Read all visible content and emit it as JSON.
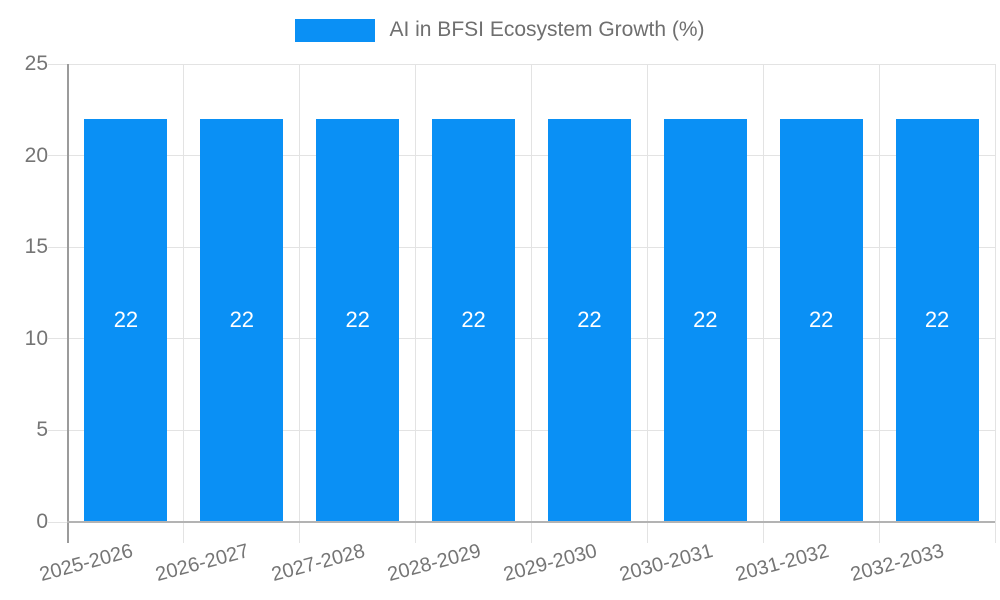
{
  "chart_data": {
    "type": "bar",
    "title": "AI in BFSI Ecosystem Growth (%)",
    "categories": [
      "2025-2026",
      "2026-2027",
      "2027-2028",
      "2028-2029",
      "2029-2030",
      "2030-2031",
      "2031-2032",
      "2032-2033"
    ],
    "values": [
      22,
      22,
      22,
      22,
      22,
      22,
      22,
      22
    ],
    "bar_value_labels": [
      "22",
      "22",
      "22",
      "22",
      "22",
      "22",
      "22",
      "22"
    ],
    "xlabel": "",
    "ylabel": "",
    "ylim": [
      0,
      25
    ],
    "yticks": [
      0,
      5,
      10,
      15,
      20,
      25
    ],
    "grid": true,
    "legend_position": "top",
    "bar_label_position": "inside-center",
    "xtick_rotation_deg": -15
  },
  "colors": {
    "bar": "#0a90f5",
    "grid": "#e3e3e3",
    "axis_y_line": "#9b9b9b",
    "axis_x_line": "#b3b3b3",
    "tick_label": "#757575",
    "legend_label": "#6f6f6f",
    "bar_label": "#ffffff",
    "background": "#ffffff"
  }
}
